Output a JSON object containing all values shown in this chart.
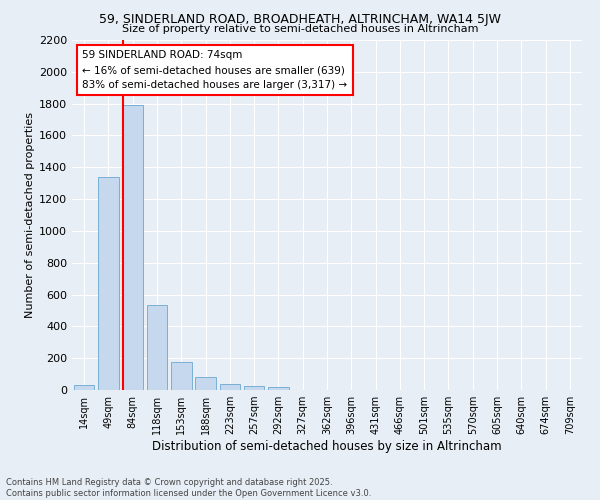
{
  "title1": "59, SINDERLAND ROAD, BROADHEATH, ALTRINCHAM, WA14 5JW",
  "title2": "Size of property relative to semi-detached houses in Altrincham",
  "xlabel": "Distribution of semi-detached houses by size in Altrincham",
  "ylabel": "Number of semi-detached properties",
  "bin_labels": [
    "14sqm",
    "49sqm",
    "84sqm",
    "118sqm",
    "153sqm",
    "188sqm",
    "223sqm",
    "257sqm",
    "292sqm",
    "327sqm",
    "362sqm",
    "396sqm",
    "431sqm",
    "466sqm",
    "501sqm",
    "535sqm",
    "570sqm",
    "605sqm",
    "640sqm",
    "674sqm",
    "709sqm"
  ],
  "bar_values": [
    30,
    1340,
    1790,
    535,
    175,
    80,
    35,
    25,
    20,
    0,
    0,
    0,
    0,
    0,
    0,
    0,
    0,
    0,
    0,
    0,
    0
  ],
  "bar_color": "#c5d8ed",
  "bar_edge_color": "#7aafd4",
  "vline_color": "red",
  "annotation_text": "59 SINDERLAND ROAD: 74sqm\n← 16% of semi-detached houses are smaller (639)\n83% of semi-detached houses are larger (3,317) →",
  "annotation_box_color": "white",
  "annotation_box_edge": "red",
  "ylim": [
    0,
    2200
  ],
  "yticks": [
    0,
    200,
    400,
    600,
    800,
    1000,
    1200,
    1400,
    1600,
    1800,
    2000,
    2200
  ],
  "background_color": "#e8eef5",
  "grid_color": "white",
  "footer": "Contains HM Land Registry data © Crown copyright and database right 2025.\nContains public sector information licensed under the Open Government Licence v3.0."
}
